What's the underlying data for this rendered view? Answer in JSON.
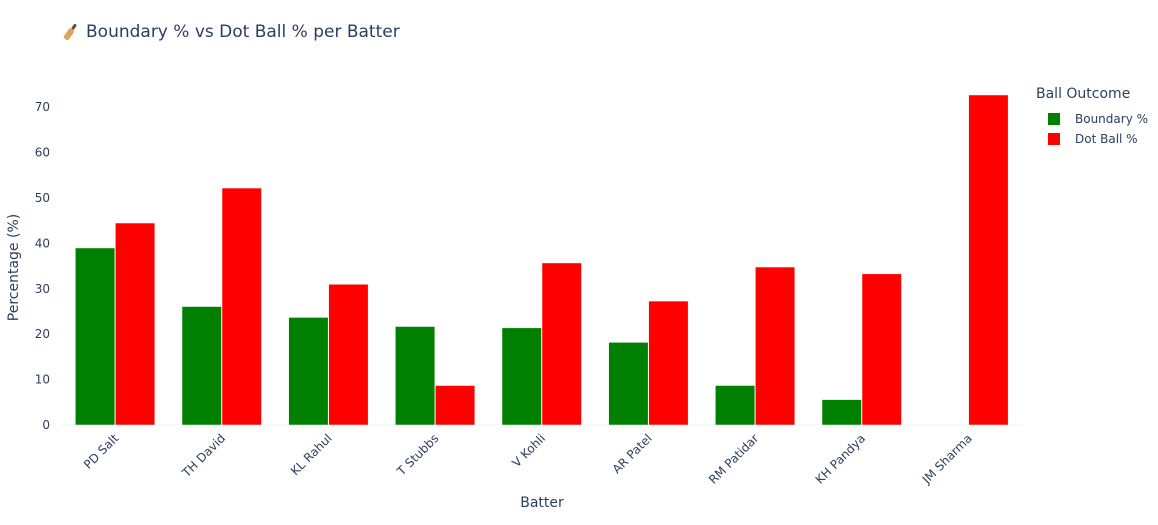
{
  "chart_data": {
    "type": "bar",
    "title": "Boundary % vs Dot Ball % per Batter",
    "title_icon": "cricket-bat-icon",
    "xlabel": "Batter",
    "ylabel": "Percentage (%)",
    "ylim": [
      0,
      76
    ],
    "yticks": [
      0,
      10,
      20,
      30,
      40,
      50,
      60,
      70
    ],
    "grid": false,
    "legend_title": "Ball Outcome",
    "legend_position": "right",
    "categories": [
      "PD Salt",
      "TH David",
      "KL Rahul",
      "T Stubbs",
      "V Kohli",
      "AR Patel",
      "RM Patidar",
      "KH Pandya",
      "JM Sharma"
    ],
    "series": [
      {
        "name": "Boundary %",
        "color": "#008000",
        "values": [
          39.0,
          26.1,
          23.7,
          21.7,
          21.4,
          18.2,
          8.7,
          5.6,
          0.0
        ]
      },
      {
        "name": "Dot Ball %",
        "color": "#ff0000",
        "values": [
          44.5,
          52.2,
          31.0,
          8.7,
          35.7,
          27.3,
          34.8,
          33.3,
          72.7
        ]
      }
    ]
  }
}
